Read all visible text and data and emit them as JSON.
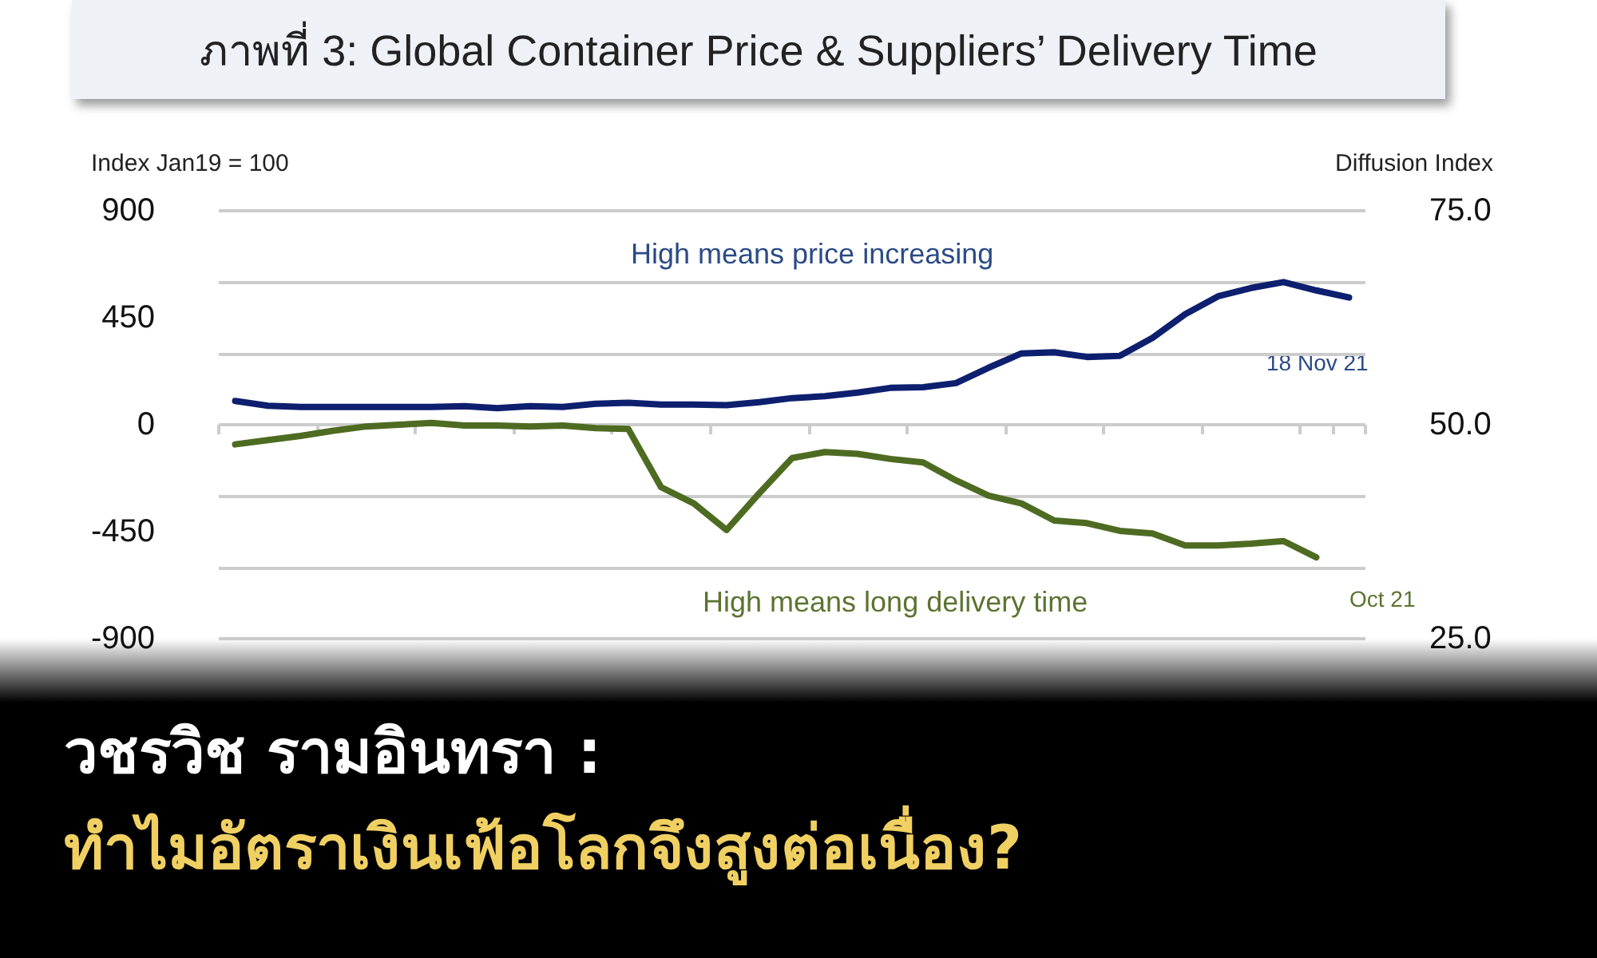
{
  "chart_data": {
    "type": "line",
    "title": "ภาพที่ 3: Global Container Price & Suppliers’ Delivery Time",
    "ylabel": "Index Jan19 = 100",
    "y2label": "Diffusion Index",
    "categories": [
      null,
      null,
      null,
      null,
      null,
      null,
      null,
      null,
      null,
      null,
      null,
      null,
      null,
      null,
      null,
      null,
      null,
      null,
      null,
      null,
      null,
      null,
      null,
      null,
      null,
      null,
      null,
      null,
      null,
      null,
      null,
      null,
      null,
      null,
      null
    ],
    "series": [
      {
        "color": "#0d1f6e",
        "values": [
          100,
          80,
          75,
          75,
          75,
          75,
          75,
          78,
          70,
          78,
          75,
          88,
          92,
          85,
          85,
          82,
          95,
          112,
          120,
          135,
          155,
          158,
          175,
          240,
          300,
          305,
          285,
          290,
          365,
          465,
          540,
          575,
          600,
          565,
          535
        ]
      },
      {
        "color": "#4e6b22",
        "axis": "y2",
        "values": [
          47.7,
          48.2,
          48.7,
          49.3,
          49.8,
          50.0,
          50.2,
          49.9,
          49.9,
          49.8,
          49.9,
          49.6,
          49.5,
          42.7,
          40.8,
          37.7,
          42.0,
          46.1,
          46.8,
          46.6,
          46.0,
          45.6,
          43.5,
          41.7,
          40.8,
          38.8,
          38.5,
          37.6,
          37.3,
          35.9,
          35.9,
          36.1,
          36.4,
          34.5,
          null
        ]
      }
    ],
    "ylim": [
      -900,
      900
    ],
    "yticks": [
      -900,
      -450,
      0,
      450,
      900
    ],
    "y2lim": [
      25,
      75
    ],
    "y2ticks": [
      {
        "value": 25,
        "label": "25.0"
      },
      {
        "value": 50,
        "label": "50.0"
      },
      {
        "value": 75,
        "label": "75.0"
      }
    ],
    "grid": "y",
    "legend": false,
    "marker": "none",
    "line_style": "solid",
    "annotations": [
      "High means price increasing",
      "18 Nov 21",
      "High means long delivery time",
      "Oct 21",
      "วชรวิช รามอินทรา :",
      "ทำไมอัตราเงินเฟ้อโลกจึงสูงต่อเนื่อง?"
    ]
  }
}
